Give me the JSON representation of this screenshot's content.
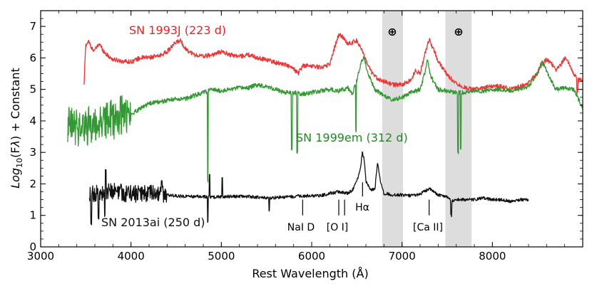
{
  "chart_data": {
    "type": "line",
    "xlabel": "Rest Wavelength (Å)",
    "ylabel_parts": {
      "prefix": "Log",
      "sub": "10",
      "mid": "(F",
      "lambda": "λ",
      "suffix": ") + Constant"
    },
    "xlim": [
      3000,
      9000
    ],
    "ylim": [
      0,
      7.5
    ],
    "x_ticks": [
      3000,
      4000,
      5000,
      6000,
      7000,
      8000
    ],
    "y_ticks": [
      0,
      1,
      2,
      3,
      4,
      5,
      6,
      7
    ],
    "telluric_bands": [
      {
        "range": [
          6780,
          7010
        ],
        "label": "⊕"
      },
      {
        "range": [
          7480,
          7770
        ],
        "label": "⊕"
      }
    ],
    "series": [
      {
        "name": "SN 1993J (223 d)",
        "color": "#ee3333",
        "label_color": "#ee2222",
        "x_range": [
          3480,
          9000
        ],
        "noise": 0.07,
        "points": [
          [
            3480,
            5.1
          ],
          [
            3490,
            5.9
          ],
          [
            3500,
            6.4
          ],
          [
            3530,
            6.55
          ],
          [
            3560,
            6.3
          ],
          [
            3600,
            6.25
          ],
          [
            3650,
            6.45
          ],
          [
            3700,
            6.2
          ],
          [
            3750,
            6.05
          ],
          [
            3800,
            5.95
          ],
          [
            3900,
            5.9
          ],
          [
            4000,
            5.88
          ],
          [
            4100,
            6.0
          ],
          [
            4200,
            6.02
          ],
          [
            4300,
            6.05
          ],
          [
            4400,
            6.2
          ],
          [
            4500,
            6.5
          ],
          [
            4550,
            6.55
          ],
          [
            4600,
            6.3
          ],
          [
            4700,
            6.1
          ],
          [
            4800,
            6.05
          ],
          [
            4900,
            6.1
          ],
          [
            5000,
            6.2
          ],
          [
            5100,
            6.1
          ],
          [
            5200,
            6.05
          ],
          [
            5300,
            6.1
          ],
          [
            5400,
            6.0
          ],
          [
            5500,
            5.95
          ],
          [
            5600,
            5.85
          ],
          [
            5700,
            5.8
          ],
          [
            5800,
            5.65
          ],
          [
            5850,
            5.5
          ],
          [
            5900,
            5.75
          ],
          [
            6000,
            5.75
          ],
          [
            6100,
            5.7
          ],
          [
            6200,
            5.8
          ],
          [
            6250,
            6.3
          ],
          [
            6300,
            6.75
          ],
          [
            6350,
            6.65
          ],
          [
            6400,
            6.45
          ],
          [
            6450,
            6.5
          ],
          [
            6500,
            6.55
          ],
          [
            6550,
            6.3
          ],
          [
            6600,
            5.9
          ],
          [
            6650,
            5.6
          ],
          [
            6700,
            5.4
          ],
          [
            6800,
            5.25
          ],
          [
            6900,
            5.15
          ],
          [
            7000,
            5.15
          ],
          [
            7100,
            5.3
          ],
          [
            7150,
            5.6
          ],
          [
            7200,
            5.5
          ],
          [
            7250,
            6.1
          ],
          [
            7300,
            6.6
          ],
          [
            7350,
            6.25
          ],
          [
            7400,
            5.9
          ],
          [
            7500,
            5.45
          ],
          [
            7600,
            5.2
          ],
          [
            7700,
            5.05
          ],
          [
            7800,
            5.0
          ],
          [
            7900,
            5.05
          ],
          [
            8000,
            5.1
          ],
          [
            8100,
            5.1
          ],
          [
            8200,
            5.0
          ],
          [
            8300,
            5.1
          ],
          [
            8400,
            5.2
          ],
          [
            8500,
            5.55
          ],
          [
            8550,
            5.8
          ],
          [
            8600,
            5.95
          ],
          [
            8650,
            5.85
          ],
          [
            8700,
            5.6
          ],
          [
            8750,
            5.75
          ],
          [
            8800,
            6.0
          ],
          [
            8850,
            5.8
          ],
          [
            8900,
            5.5
          ],
          [
            8950,
            5.3
          ],
          [
            9000,
            5.3
          ]
        ],
        "dips": [
          [
            8940,
            4.9
          ]
        ]
      },
      {
        "name": "SN 1999em (312 d)",
        "color": "#339933",
        "label_color": "#228822",
        "x_range": [
          3300,
          9000
        ],
        "noise": 0.07,
        "big_noise": {
          "until": 4000,
          "amp": 0.65
        },
        "points": [
          [
            3300,
            3.8
          ],
          [
            3400,
            3.8
          ],
          [
            3500,
            3.8
          ],
          [
            3600,
            3.9
          ],
          [
            3700,
            4.0
          ],
          [
            3800,
            4.05
          ],
          [
            3900,
            4.2
          ],
          [
            4000,
            4.2
          ],
          [
            4100,
            4.4
          ],
          [
            4200,
            4.55
          ],
          [
            4300,
            4.6
          ],
          [
            4400,
            4.65
          ],
          [
            4500,
            4.7
          ],
          [
            4600,
            4.7
          ],
          [
            4700,
            4.8
          ],
          [
            4800,
            4.9
          ],
          [
            4900,
            5.0
          ],
          [
            5000,
            4.95
          ],
          [
            5100,
            5.0
          ],
          [
            5200,
            5.05
          ],
          [
            5300,
            5.05
          ],
          [
            5400,
            5.15
          ],
          [
            5500,
            5.1
          ],
          [
            5600,
            5.0
          ],
          [
            5700,
            4.9
          ],
          [
            5800,
            4.9
          ],
          [
            5900,
            4.85
          ],
          [
            6000,
            4.9
          ],
          [
            6100,
            4.95
          ],
          [
            6200,
            5.0
          ],
          [
            6300,
            4.95
          ],
          [
            6400,
            5.05
          ],
          [
            6450,
            4.85
          ],
          [
            6500,
            5.3
          ],
          [
            6550,
            5.9
          ],
          [
            6580,
            6.0
          ],
          [
            6620,
            5.5
          ],
          [
            6700,
            5.0
          ],
          [
            6800,
            4.8
          ],
          [
            6900,
            4.65
          ],
          [
            7000,
            4.75
          ],
          [
            7100,
            4.9
          ],
          [
            7200,
            5.0
          ],
          [
            7250,
            5.5
          ],
          [
            7280,
            5.95
          ],
          [
            7320,
            5.4
          ],
          [
            7400,
            5.0
          ],
          [
            7500,
            4.95
          ],
          [
            7600,
            4.9
          ],
          [
            7700,
            4.9
          ],
          [
            7800,
            4.95
          ],
          [
            7900,
            4.95
          ],
          [
            8000,
            5.0
          ],
          [
            8100,
            5.0
          ],
          [
            8200,
            4.95
          ],
          [
            8300,
            5.0
          ],
          [
            8400,
            5.1
          ],
          [
            8500,
            5.5
          ],
          [
            8550,
            5.9
          ],
          [
            8600,
            5.6
          ],
          [
            8700,
            5.0
          ],
          [
            8800,
            5.05
          ],
          [
            8900,
            5.0
          ],
          [
            9000,
            4.4
          ]
        ],
        "dips": [
          [
            4850,
            2.1
          ],
          [
            5780,
            3.1
          ],
          [
            5840,
            3.0
          ],
          [
            6490,
            3.7
          ],
          [
            7620,
            3.0
          ],
          [
            7650,
            3.1
          ]
        ]
      },
      {
        "name": "SN 2013ai (250 d)",
        "color": "#111111",
        "label_color": "#111111",
        "x_range": [
          3540,
          8400
        ],
        "noise": 0.05,
        "big_noise": {
          "until": 4400,
          "amp": 0.28
        },
        "points": [
          [
            3540,
            1.6
          ],
          [
            3600,
            1.7
          ],
          [
            3700,
            1.75
          ],
          [
            3800,
            1.8
          ],
          [
            3900,
            1.72
          ],
          [
            4000,
            1.68
          ],
          [
            4100,
            1.7
          ],
          [
            4200,
            1.68
          ],
          [
            4300,
            1.68
          ],
          [
            4400,
            1.65
          ],
          [
            4500,
            1.62
          ],
          [
            4700,
            1.6
          ],
          [
            4900,
            1.58
          ],
          [
            5100,
            1.6
          ],
          [
            5300,
            1.6
          ],
          [
            5500,
            1.55
          ],
          [
            5700,
            1.58
          ],
          [
            5900,
            1.62
          ],
          [
            6100,
            1.62
          ],
          [
            6200,
            1.7
          ],
          [
            6300,
            1.75
          ],
          [
            6400,
            1.7
          ],
          [
            6450,
            1.8
          ],
          [
            6500,
            2.1
          ],
          [
            6540,
            2.5
          ],
          [
            6560,
            3.0
          ],
          [
            6580,
            2.8
          ],
          [
            6600,
            2.1
          ],
          [
            6650,
            1.8
          ],
          [
            6700,
            1.85
          ],
          [
            6730,
            2.7
          ],
          [
            6760,
            2.1
          ],
          [
            6800,
            1.7
          ],
          [
            6900,
            1.65
          ],
          [
            7000,
            1.65
          ],
          [
            7100,
            1.62
          ],
          [
            7200,
            1.68
          ],
          [
            7300,
            1.85
          ],
          [
            7350,
            1.75
          ],
          [
            7400,
            1.65
          ],
          [
            7500,
            1.6
          ],
          [
            7550,
            1.45
          ],
          [
            7600,
            1.5
          ],
          [
            7700,
            1.5
          ],
          [
            7800,
            1.5
          ],
          [
            7900,
            1.55
          ],
          [
            8000,
            1.5
          ],
          [
            8100,
            1.5
          ],
          [
            8200,
            1.45
          ],
          [
            8300,
            1.5
          ],
          [
            8400,
            1.5
          ]
        ],
        "dips": [
          [
            3560,
            0.7
          ],
          [
            3640,
            0.9
          ],
          [
            3710,
            1.0
          ],
          [
            4850,
            0.8
          ],
          [
            5530,
            1.15
          ],
          [
            7545,
            1.0
          ],
          [
            8390,
            1.55
          ]
        ],
        "peaks": [
          [
            3720,
            2.45
          ],
          [
            4340,
            2.1
          ],
          [
            4870,
            2.3
          ],
          [
            5010,
            2.2
          ]
        ]
      }
    ],
    "line_labels": [
      {
        "label": "NaI D",
        "x": 5900,
        "y0": 1.0,
        "y1": 1.5,
        "text_y": 0.55
      },
      {
        "label": "[O I]",
        "x": 6300,
        "y0": 1.0,
        "y1": 1.5,
        "text_y": 0.55
      },
      {
        "label": "[O I]_tick",
        "x": 6364,
        "y0": 1.0,
        "y1": 1.5
      },
      {
        "label": "Hα",
        "x": 6563,
        "y0": 1.6,
        "y1": 2.05,
        "text_y": 1.2
      },
      {
        "label": "[Ca II]",
        "x": 7300,
        "y0": 1.0,
        "y1": 1.5,
        "text_y": 0.55
      }
    ]
  },
  "labels": {
    "sn1993j": "SN 1993J (223 d)",
    "sn1999em": "SN 1999em (312 d)",
    "sn2013ai": "SN 2013ai (250 d)",
    "naid": "NaI D",
    "oi": "[O I]",
    "halpha": "Hα",
    "caii": "[Ca II]",
    "earth1": "⊕",
    "earth2": "⊕",
    "xlabel": "Rest Wavelength (Å)"
  }
}
